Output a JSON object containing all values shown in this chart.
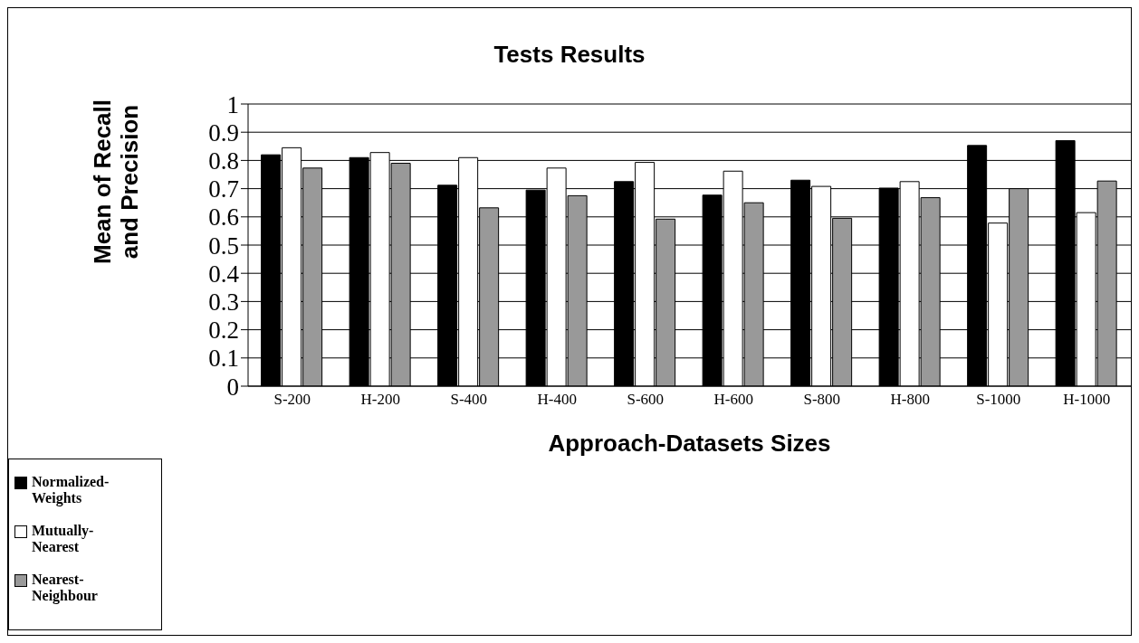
{
  "chart_data": {
    "type": "bar",
    "title": "Tests Results",
    "xlabel": "Approach-Datasets Sizes",
    "ylabel": "Mean of Recall and Precision",
    "categories": [
      "S-200",
      "H-200",
      "S-400",
      "H-400",
      "S-600",
      "H-600",
      "S-800",
      "H-800",
      "S-1000",
      "H-1000"
    ],
    "series": [
      {
        "name": "Normalized-Weights",
        "color": "#000000",
        "values": [
          0.82,
          0.81,
          0.712,
          0.695,
          0.725,
          0.677,
          0.73,
          0.702,
          0.853,
          0.87
        ]
      },
      {
        "name": "Mutually-Nearest",
        "color": "#ffffff",
        "values": [
          0.845,
          0.828,
          0.81,
          0.773,
          0.793,
          0.762,
          0.708,
          0.725,
          0.578,
          0.615
        ]
      },
      {
        "name": "Nearest-Neighbour",
        "color": "#999999",
        "values": [
          0.773,
          0.79,
          0.632,
          0.675,
          0.592,
          0.65,
          0.595,
          0.668,
          0.7,
          0.727
        ]
      }
    ],
    "ylim": [
      0,
      1
    ],
    "yticks": [
      0,
      0.1,
      0.2,
      0.3,
      0.4,
      0.5,
      0.6,
      0.7,
      0.8,
      0.9,
      1
    ],
    "grid": "y",
    "legend": "bottom left"
  }
}
